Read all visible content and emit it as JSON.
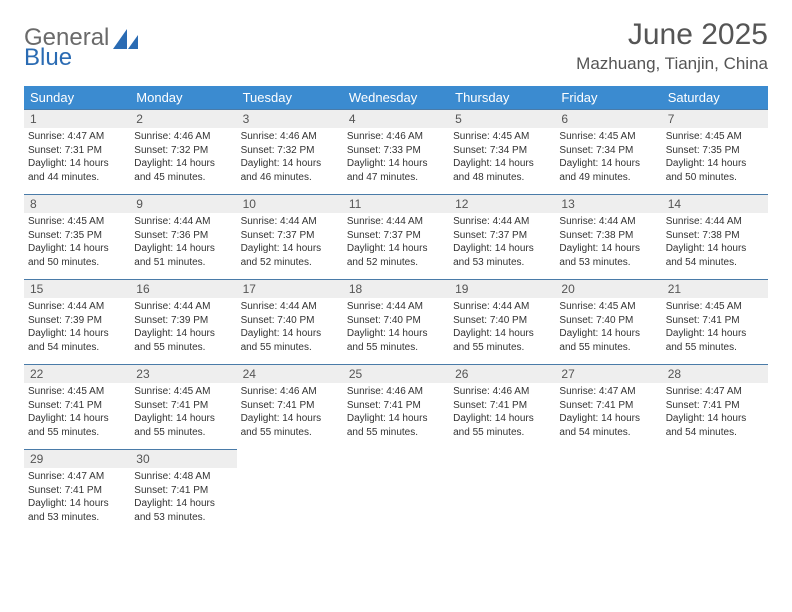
{
  "brand": {
    "part1": "General",
    "part2": "Blue"
  },
  "title": "June 2025",
  "location": "Mazhuang, Tianjin, China",
  "colors": {
    "header_bg": "#3b8bd0",
    "header_text": "#ffffff",
    "daynum_bg": "#eeeeee",
    "border": "#4a7ba8",
    "title_color": "#555555",
    "body_text": "#333333",
    "logo_gray": "#6a6a6a",
    "logo_blue": "#2a6bb3"
  },
  "dayHeaders": [
    "Sunday",
    "Monday",
    "Tuesday",
    "Wednesday",
    "Thursday",
    "Friday",
    "Saturday"
  ],
  "weeks": [
    [
      {
        "n": "1",
        "sr": "4:47 AM",
        "ss": "7:31 PM",
        "dl": "14 hours and 44 minutes."
      },
      {
        "n": "2",
        "sr": "4:46 AM",
        "ss": "7:32 PM",
        "dl": "14 hours and 45 minutes."
      },
      {
        "n": "3",
        "sr": "4:46 AM",
        "ss": "7:32 PM",
        "dl": "14 hours and 46 minutes."
      },
      {
        "n": "4",
        "sr": "4:46 AM",
        "ss": "7:33 PM",
        "dl": "14 hours and 47 minutes."
      },
      {
        "n": "5",
        "sr": "4:45 AM",
        "ss": "7:34 PM",
        "dl": "14 hours and 48 minutes."
      },
      {
        "n": "6",
        "sr": "4:45 AM",
        "ss": "7:34 PM",
        "dl": "14 hours and 49 minutes."
      },
      {
        "n": "7",
        "sr": "4:45 AM",
        "ss": "7:35 PM",
        "dl": "14 hours and 50 minutes."
      }
    ],
    [
      {
        "n": "8",
        "sr": "4:45 AM",
        "ss": "7:35 PM",
        "dl": "14 hours and 50 minutes."
      },
      {
        "n": "9",
        "sr": "4:44 AM",
        "ss": "7:36 PM",
        "dl": "14 hours and 51 minutes."
      },
      {
        "n": "10",
        "sr": "4:44 AM",
        "ss": "7:37 PM",
        "dl": "14 hours and 52 minutes."
      },
      {
        "n": "11",
        "sr": "4:44 AM",
        "ss": "7:37 PM",
        "dl": "14 hours and 52 minutes."
      },
      {
        "n": "12",
        "sr": "4:44 AM",
        "ss": "7:37 PM",
        "dl": "14 hours and 53 minutes."
      },
      {
        "n": "13",
        "sr": "4:44 AM",
        "ss": "7:38 PM",
        "dl": "14 hours and 53 minutes."
      },
      {
        "n": "14",
        "sr": "4:44 AM",
        "ss": "7:38 PM",
        "dl": "14 hours and 54 minutes."
      }
    ],
    [
      {
        "n": "15",
        "sr": "4:44 AM",
        "ss": "7:39 PM",
        "dl": "14 hours and 54 minutes."
      },
      {
        "n": "16",
        "sr": "4:44 AM",
        "ss": "7:39 PM",
        "dl": "14 hours and 55 minutes."
      },
      {
        "n": "17",
        "sr": "4:44 AM",
        "ss": "7:40 PM",
        "dl": "14 hours and 55 minutes."
      },
      {
        "n": "18",
        "sr": "4:44 AM",
        "ss": "7:40 PM",
        "dl": "14 hours and 55 minutes."
      },
      {
        "n": "19",
        "sr": "4:44 AM",
        "ss": "7:40 PM",
        "dl": "14 hours and 55 minutes."
      },
      {
        "n": "20",
        "sr": "4:45 AM",
        "ss": "7:40 PM",
        "dl": "14 hours and 55 minutes."
      },
      {
        "n": "21",
        "sr": "4:45 AM",
        "ss": "7:41 PM",
        "dl": "14 hours and 55 minutes."
      }
    ],
    [
      {
        "n": "22",
        "sr": "4:45 AM",
        "ss": "7:41 PM",
        "dl": "14 hours and 55 minutes."
      },
      {
        "n": "23",
        "sr": "4:45 AM",
        "ss": "7:41 PM",
        "dl": "14 hours and 55 minutes."
      },
      {
        "n": "24",
        "sr": "4:46 AM",
        "ss": "7:41 PM",
        "dl": "14 hours and 55 minutes."
      },
      {
        "n": "25",
        "sr": "4:46 AM",
        "ss": "7:41 PM",
        "dl": "14 hours and 55 minutes."
      },
      {
        "n": "26",
        "sr": "4:46 AM",
        "ss": "7:41 PM",
        "dl": "14 hours and 55 minutes."
      },
      {
        "n": "27",
        "sr": "4:47 AM",
        "ss": "7:41 PM",
        "dl": "14 hours and 54 minutes."
      },
      {
        "n": "28",
        "sr": "4:47 AM",
        "ss": "7:41 PM",
        "dl": "14 hours and 54 minutes."
      }
    ],
    [
      {
        "n": "29",
        "sr": "4:47 AM",
        "ss": "7:41 PM",
        "dl": "14 hours and 53 minutes."
      },
      {
        "n": "30",
        "sr": "4:48 AM",
        "ss": "7:41 PM",
        "dl": "14 hours and 53 minutes."
      },
      null,
      null,
      null,
      null,
      null
    ]
  ],
  "labels": {
    "sunrise": "Sunrise:",
    "sunset": "Sunset:",
    "daylight": "Daylight:"
  }
}
